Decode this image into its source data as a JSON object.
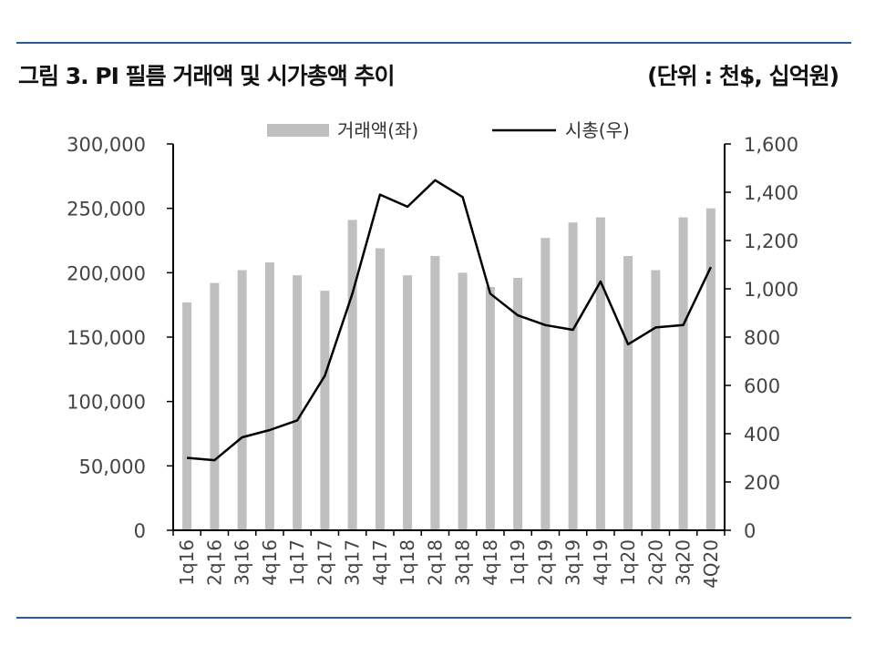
{
  "header": {
    "title": "그림 3. PI 필름 거래액 및 시가총액 추이",
    "unit": "(단위 : 천$, 십억원)"
  },
  "colors": {
    "rule": "#2e5a9c",
    "bar": "#bfbfbf",
    "line": "#000000",
    "axis": "#000000"
  },
  "chart_data": {
    "type": "bar",
    "categories": [
      "1q16",
      "2q16",
      "3q16",
      "4q16",
      "1q17",
      "2q17",
      "3q17",
      "4q17",
      "1q18",
      "2q18",
      "3q18",
      "4q18",
      "1q19",
      "2q19",
      "3q19",
      "4q19",
      "1q20",
      "2q20",
      "3q20",
      "4Q20"
    ],
    "series": [
      {
        "name": "거래액(좌)",
        "type": "bar",
        "axis": "left",
        "values": [
          177000,
          192000,
          202000,
          208000,
          198000,
          186000,
          241000,
          219000,
          198000,
          213000,
          200000,
          189000,
          196000,
          227000,
          239000,
          243000,
          213000,
          202000,
          243000,
          250000
        ]
      },
      {
        "name": "시총(우)",
        "type": "line",
        "axis": "right",
        "values": [
          300,
          290,
          385,
          415,
          455,
          640,
          980,
          1390,
          1340,
          1450,
          1380,
          980,
          890,
          850,
          830,
          1030,
          770,
          840,
          850,
          1090
        ]
      }
    ],
    "y_left": {
      "lim": [
        0,
        300000
      ],
      "ticks": [
        "0",
        "50,000",
        "100,000",
        "150,000",
        "200,000",
        "250,000",
        "300,000"
      ]
    },
    "y_right": {
      "lim": [
        0,
        1600
      ],
      "ticks": [
        "0",
        "200",
        "400",
        "600",
        "800",
        "1,000",
        "1,200",
        "1,400",
        "1,600"
      ]
    },
    "legend": {
      "position": "top-center"
    },
    "grid": false
  }
}
